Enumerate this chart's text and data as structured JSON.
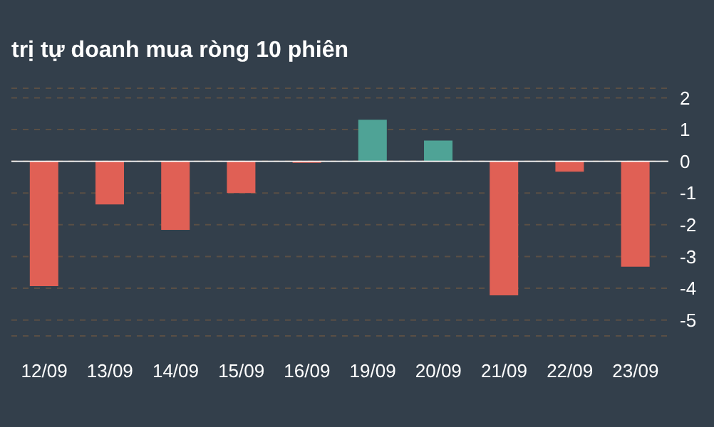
{
  "chart_data": {
    "type": "bar",
    "title": "trị tự doanh mua ròng 10 phiên",
    "categories": [
      "12/09",
      "13/09",
      "14/09",
      "15/09",
      "16/09",
      "19/09",
      "20/09",
      "21/09",
      "22/09",
      "23/09"
    ],
    "values": [
      -3.93,
      -1.36,
      -2.16,
      -1.0,
      -0.05,
      1.31,
      0.65,
      -4.22,
      -0.33,
      -3.32
    ],
    "colors": [
      "#e06055",
      "#e06055",
      "#e06055",
      "#e06055",
      "#e06055",
      "#4fa396",
      "#4fa396",
      "#e06055",
      "#e06055",
      "#e06055"
    ],
    "ylim": [
      -5.5,
      2.3
    ],
    "yticks": [
      2,
      1,
      0,
      -1,
      -2,
      -3,
      -4,
      -5
    ],
    "grid": "y",
    "ref_lines": [
      {
        "axis": "y",
        "value": 0,
        "color": "#ffffff"
      }
    ]
  }
}
